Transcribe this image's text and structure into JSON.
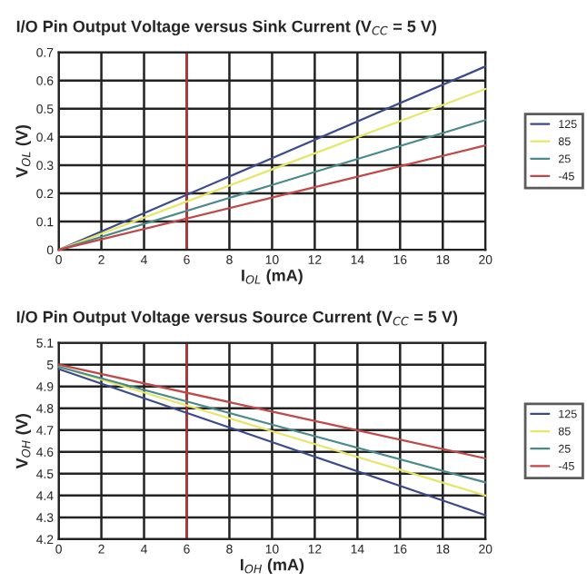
{
  "chart_data": [
    {
      "type": "line",
      "title": "I/O Pin Output Voltage versus Sink Current (V$_{CC}$ = 5 V)",
      "xlabel": "I$_{OL}$ (mA)",
      "ylabel": "V$_{OL}$ (V)",
      "series": [
        {
          "name": "125",
          "color": "#3a4a8a",
          "x": [
            0,
            10,
            20
          ],
          "values": [
            0,
            0.325,
            0.65
          ]
        },
        {
          "name": "85",
          "color": "#e6e66a",
          "x": [
            0,
            10,
            20
          ],
          "values": [
            0,
            0.285,
            0.57
          ]
        },
        {
          "name": "25",
          "color": "#4a8a8a",
          "x": [
            0,
            10,
            20
          ],
          "values": [
            0,
            0.23,
            0.46
          ]
        },
        {
          "name": "-45",
          "color": "#c04848",
          "x": [
            0,
            10,
            20
          ],
          "values": [
            0,
            0.185,
            0.37
          ]
        }
      ],
      "xlim": [
        0,
        20
      ],
      "xticks": [
        0,
        2,
        4,
        6,
        8,
        10,
        12,
        14,
        16,
        18,
        20
      ],
      "ylim": [
        0,
        0.7
      ],
      "yticks": [
        0,
        0.1,
        0.2,
        0.3,
        0.4,
        0.5,
        0.6,
        0.7
      ],
      "ref_lines": [
        {
          "axis": "x",
          "value": 6,
          "color": "#c03030"
        }
      ],
      "grid": true,
      "legend": "right",
      "marker": "none",
      "line_style": "solid"
    },
    {
      "type": "line",
      "title": "I/O Pin Output Voltage versus Source Current (V$_{CC}$ = 5 V)",
      "xlabel": "I$_{OH}$ (mA)",
      "ylabel": "V$_{OH}$ (V)",
      "series": [
        {
          "name": "125",
          "color": "#3a4a8a",
          "x": [
            0,
            10,
            20
          ],
          "values": [
            4.98,
            4.645,
            4.31
          ]
        },
        {
          "name": "85",
          "color": "#e6e66a",
          "x": [
            0,
            10,
            20
          ],
          "values": [
            4.99,
            4.695,
            4.4
          ]
        },
        {
          "name": "25",
          "color": "#4a8a8a",
          "x": [
            0,
            10,
            20
          ],
          "values": [
            4.99,
            4.725,
            4.46
          ]
        },
        {
          "name": "-45",
          "color": "#c04848",
          "x": [
            0,
            10,
            20
          ],
          "values": [
            5.0,
            4.785,
            4.57
          ]
        }
      ],
      "xlim": [
        0,
        20
      ],
      "xticks": [
        0,
        2,
        4,
        6,
        8,
        10,
        12,
        14,
        16,
        18,
        20
      ],
      "ylim": [
        4.2,
        5.1
      ],
      "yticks": [
        4.2,
        4.3,
        4.4,
        4.5,
        4.6,
        4.7,
        4.8,
        4.9,
        5,
        5.1
      ],
      "ref_lines": [
        {
          "axis": "x",
          "value": 6,
          "color": "#c03030"
        }
      ],
      "grid": true,
      "legend": "right",
      "marker": "none",
      "line_style": "solid"
    }
  ]
}
